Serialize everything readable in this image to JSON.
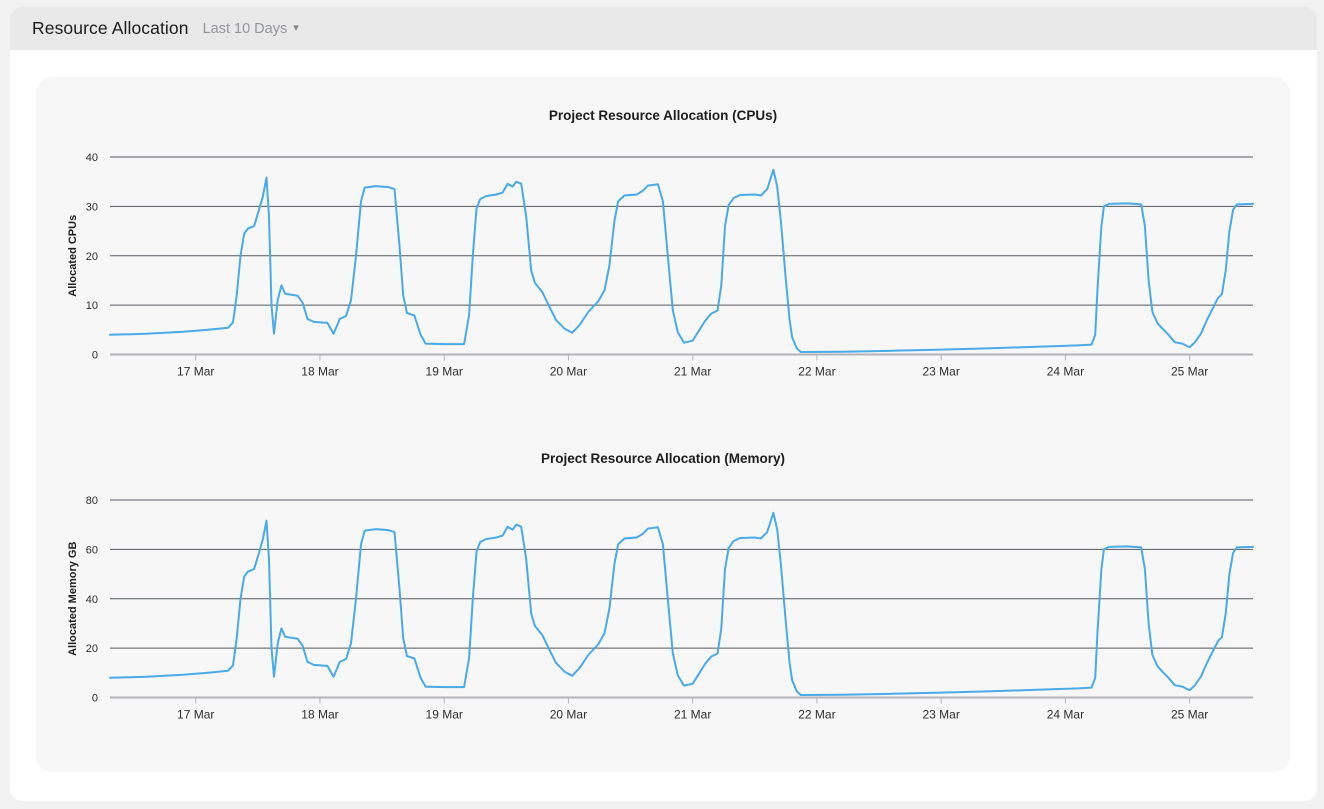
{
  "header": {
    "title": "Resource Allocation",
    "range_selector": {
      "label": "Last 10 Days",
      "caret_glyph": "▾"
    }
  },
  "colors": {
    "page_bg": "#f2f2f2",
    "panel_bg": "#ffffff",
    "header_bg": "#e9e9e9",
    "card_bg": "#f7f7f7",
    "line": "#49aae8",
    "gridline": "#55585f",
    "axis_line": "#b3b3b7",
    "tick_text": "#2f2f2f"
  },
  "chart_data": [
    {
      "type": "line",
      "title": "Project Resource Allocation (CPUs)",
      "ylabel": "Allocated CPUs",
      "ylim": [
        0,
        40
      ],
      "yticks": [
        0,
        10,
        20,
        30,
        40
      ],
      "grid": true,
      "legend": "none",
      "line_color": "#49aae8",
      "x_window_days": [
        0.31,
        9.51
      ],
      "xticks": [
        {
          "day": 1,
          "label": "17 Mar"
        },
        {
          "day": 2,
          "label": "18 Mar"
        },
        {
          "day": 3,
          "label": "19 Mar"
        },
        {
          "day": 4,
          "label": "20 Mar"
        },
        {
          "day": 5,
          "label": "21 Mar"
        },
        {
          "day": 6,
          "label": "22 Mar"
        },
        {
          "day": 7,
          "label": "23 Mar"
        },
        {
          "day": 8,
          "label": "24 Mar"
        },
        {
          "day": 9,
          "label": "25 Mar"
        }
      ],
      "x_days": [
        0.31,
        0.6,
        0.9,
        1.1,
        1.26,
        1.3,
        1.33,
        1.36,
        1.39,
        1.42,
        1.47,
        1.5,
        1.54,
        1.57,
        1.59,
        1.61,
        1.63,
        1.66,
        1.69,
        1.72,
        1.82,
        1.86,
        1.9,
        1.95,
        2.06,
        2.11,
        2.16,
        2.21,
        2.25,
        2.29,
        2.33,
        2.36,
        2.45,
        2.55,
        2.6,
        2.64,
        2.67,
        2.7,
        2.76,
        2.81,
        2.85,
        3.0,
        3.16,
        3.2,
        3.23,
        3.26,
        3.29,
        3.34,
        3.42,
        3.47,
        3.51,
        3.55,
        3.58,
        3.62,
        3.66,
        3.7,
        3.73,
        3.79,
        3.84,
        3.9,
        3.97,
        4.03,
        4.09,
        4.16,
        4.24,
        4.29,
        4.33,
        4.37,
        4.4,
        4.45,
        4.55,
        4.6,
        4.64,
        4.72,
        4.76,
        4.8,
        4.84,
        4.88,
        4.93,
        5.0,
        5.05,
        5.1,
        5.15,
        5.2,
        5.23,
        5.26,
        5.29,
        5.33,
        5.38,
        5.5,
        5.55,
        5.6,
        5.65,
        5.68,
        5.71,
        5.75,
        5.78,
        5.8,
        5.84,
        5.87,
        6.2,
        6.6,
        7.0,
        7.4,
        7.8,
        8.1,
        8.21,
        8.24,
        8.26,
        8.29,
        8.31,
        8.35,
        8.5,
        8.61,
        8.64,
        8.67,
        8.7,
        8.74,
        8.79,
        8.83,
        8.88,
        8.94,
        9.0,
        9.04,
        9.09,
        9.14,
        9.19,
        9.23,
        9.26,
        9.29,
        9.32,
        9.35,
        9.38,
        9.51
      ],
      "values": [
        4,
        4.2,
        4.6,
        5,
        5.4,
        6.5,
        12,
        20,
        24.5,
        25.5,
        26,
        28.5,
        32,
        35.8,
        28,
        10,
        4.2,
        11,
        14,
        12.3,
        11.9,
        10.5,
        7.2,
        6.6,
        6.4,
        4.2,
        7.2,
        7.8,
        11,
        20,
        31,
        33.8,
        34.1,
        33.9,
        33.5,
        22,
        12,
        8.4,
        7.9,
        4,
        2.2,
        2.1,
        2.1,
        8,
        20,
        29.5,
        31.5,
        32.1,
        32.4,
        32.8,
        34.6,
        34,
        35,
        34.6,
        28,
        17,
        14.5,
        12.6,
        10,
        7,
        5.2,
        4.4,
        6,
        8.6,
        10.8,
        13,
        18,
        27,
        31,
        32.2,
        32.4,
        33.2,
        34.2,
        34.5,
        31,
        20,
        9,
        4.5,
        2.4,
        2.8,
        4.8,
        6.8,
        8.3,
        8.9,
        14,
        26,
        30.3,
        31.7,
        32.3,
        32.4,
        32.2,
        33.5,
        37.4,
        34,
        27,
        15,
        7,
        3.5,
        1.2,
        0.5,
        0.55,
        0.75,
        1,
        1.25,
        1.6,
        1.85,
        2,
        4,
        14,
        26,
        30,
        30.5,
        30.6,
        30.4,
        26,
        15,
        8.6,
        6.4,
        5,
        4,
        2.5,
        2.2,
        1.5,
        2.4,
        4.2,
        7,
        9.5,
        11.5,
        12.2,
        17,
        25,
        29.3,
        30.4,
        30.5
      ]
    },
    {
      "type": "line",
      "title": "Project Resource Allocation (Memory)",
      "ylabel": "Allocated Memory GB",
      "ylim": [
        0,
        80
      ],
      "yticks": [
        0,
        20,
        40,
        60,
        80
      ],
      "grid": true,
      "legend": "none",
      "line_color": "#49aae8",
      "x_window_days": [
        0.31,
        9.51
      ],
      "xticks": [
        {
          "day": 1,
          "label": "17 Mar"
        },
        {
          "day": 2,
          "label": "18 Mar"
        },
        {
          "day": 3,
          "label": "19 Mar"
        },
        {
          "day": 4,
          "label": "20 Mar"
        },
        {
          "day": 5,
          "label": "21 Mar"
        },
        {
          "day": 6,
          "label": "22 Mar"
        },
        {
          "day": 7,
          "label": "23 Mar"
        },
        {
          "day": 8,
          "label": "24 Mar"
        },
        {
          "day": 9,
          "label": "25 Mar"
        }
      ],
      "x_days": [
        0.31,
        0.6,
        0.9,
        1.1,
        1.26,
        1.3,
        1.33,
        1.36,
        1.39,
        1.42,
        1.47,
        1.5,
        1.54,
        1.57,
        1.59,
        1.61,
        1.63,
        1.66,
        1.69,
        1.72,
        1.82,
        1.86,
        1.9,
        1.95,
        2.06,
        2.11,
        2.16,
        2.21,
        2.25,
        2.29,
        2.33,
        2.36,
        2.45,
        2.55,
        2.6,
        2.64,
        2.67,
        2.7,
        2.76,
        2.81,
        2.85,
        3.0,
        3.16,
        3.2,
        3.23,
        3.26,
        3.29,
        3.34,
        3.42,
        3.47,
        3.51,
        3.55,
        3.58,
        3.62,
        3.66,
        3.7,
        3.73,
        3.79,
        3.84,
        3.9,
        3.97,
        4.03,
        4.09,
        4.16,
        4.24,
        4.29,
        4.33,
        4.37,
        4.4,
        4.45,
        4.55,
        4.6,
        4.64,
        4.72,
        4.76,
        4.8,
        4.84,
        4.88,
        4.93,
        5.0,
        5.05,
        5.1,
        5.15,
        5.2,
        5.23,
        5.26,
        5.29,
        5.33,
        5.38,
        5.5,
        5.55,
        5.6,
        5.65,
        5.68,
        5.71,
        5.75,
        5.78,
        5.8,
        5.84,
        5.87,
        6.2,
        6.6,
        7.0,
        7.4,
        7.8,
        8.1,
        8.21,
        8.24,
        8.26,
        8.29,
        8.31,
        8.35,
        8.5,
        8.61,
        8.64,
        8.67,
        8.7,
        8.74,
        8.79,
        8.83,
        8.88,
        8.94,
        9.0,
        9.04,
        9.09,
        9.14,
        9.19,
        9.23,
        9.26,
        9.29,
        9.32,
        9.35,
        9.38,
        9.51
      ],
      "values": [
        8,
        8.4,
        9.2,
        10,
        10.8,
        13,
        24,
        40,
        49,
        51,
        52,
        57,
        64,
        71.6,
        56,
        20,
        8.4,
        22,
        28,
        24.6,
        23.8,
        21,
        14.4,
        13.2,
        12.8,
        8.4,
        14.4,
        15.6,
        22,
        40,
        62,
        67.6,
        68.2,
        67.8,
        67,
        44,
        24,
        16.8,
        15.8,
        8,
        4.4,
        4.2,
        4.2,
        16,
        40,
        59,
        63,
        64.2,
        64.8,
        65.6,
        69.2,
        68,
        70,
        69.2,
        56,
        34,
        29,
        25.2,
        20,
        14,
        10.4,
        8.8,
        12,
        17.2,
        21.6,
        26,
        36,
        54,
        62,
        64.4,
        64.8,
        66.4,
        68.4,
        69,
        62,
        40,
        18,
        9,
        4.8,
        5.6,
        9.6,
        13.6,
        16.6,
        17.8,
        28,
        52,
        60.6,
        63.4,
        64.6,
        64.8,
        64.4,
        67,
        74.8,
        68,
        54,
        30,
        14,
        7,
        2.4,
        1,
        1.1,
        1.5,
        2,
        2.5,
        3.2,
        3.7,
        4,
        8,
        28,
        52,
        60,
        61,
        61.2,
        60.8,
        52,
        30,
        17.2,
        12.8,
        10,
        8,
        5,
        4.4,
        3,
        4.8,
        8.4,
        14,
        19,
        23,
        24.4,
        34,
        50,
        58.6,
        60.8,
        61
      ]
    }
  ]
}
